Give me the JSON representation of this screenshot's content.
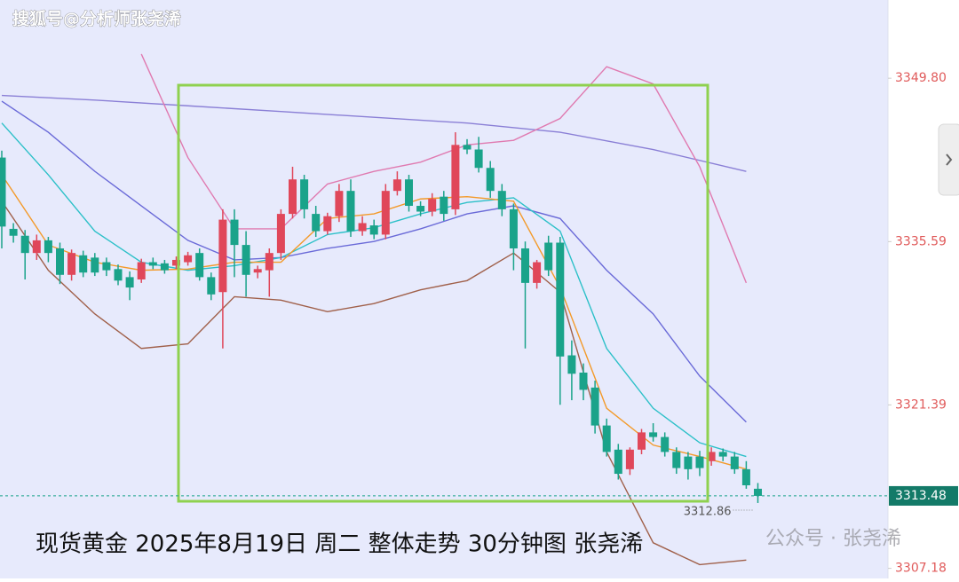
{
  "chart_data": {
    "type": "candlestick",
    "watermark": "搜狐号@分析师张尧浠",
    "caption": "现货黄金 2025年8月19日 周二 整体走势 30分钟图 张尧浠",
    "credit": "公众号 · 张尧浠",
    "up_color": "#e0475a",
    "down_color": "#1aa38a",
    "ylim": [
      3306.3,
      3356.6
    ],
    "yticks": [
      {
        "value": 3349.8,
        "label": "3349.80"
      },
      {
        "value": 3335.59,
        "label": "3335.59"
      },
      {
        "value": 3321.39,
        "label": "3321.39"
      },
      {
        "value": 3307.18,
        "label": "3307.18"
      }
    ],
    "last_price": 3313.48,
    "low_annotation": 3312.86,
    "open": [
      3342.9,
      3336.7,
      3336.1,
      3334.6,
      3335.7,
      3335.0,
      3332.7,
      3334.4,
      3334.2,
      3333.8,
      3333.2,
      3332.5,
      3332.3,
      3333.8,
      3333.7,
      3333.5,
      3333.8,
      3334.6,
      3332.5,
      3331.2,
      3337.5,
      3335.3,
      3332.9,
      3333.1,
      3334.6,
      3338.0,
      3341.0,
      3338.0,
      3336.5,
      3337.8,
      3340.0,
      3336.5,
      3337.0,
      3336.2,
      3340.0,
      3341.0,
      3338.7,
      3338.2,
      3339.5,
      3338.4,
      3344.0,
      3343.6,
      3342.0,
      3340.0,
      3338.4,
      3335.0,
      3332.0,
      3335.5,
      3335.5,
      3325.7,
      3324.2,
      3322.9,
      3319.6,
      3317.5,
      3315.8,
      3317.5,
      3319.0,
      3318.6,
      3317.3,
      3316.9,
      3316.9,
      3316.5,
      3317.3,
      3316.9,
      3315.8,
      3314.1
    ],
    "high": [
      3343.5,
      3337.2,
      3336.6,
      3336.2,
      3336.0,
      3335.5,
      3334.9,
      3334.8,
      3334.6,
      3334.2,
      3333.6,
      3333.0,
      3334.1,
      3334.2,
      3334.0,
      3334.3,
      3334.7,
      3335.0,
      3332.9,
      3338.4,
      3338.4,
      3336.5,
      3333.5,
      3335.0,
      3338.4,
      3342.1,
      3341.4,
      3338.7,
      3338.1,
      3340.6,
      3341.0,
      3337.8,
      3337.5,
      3340.6,
      3341.7,
      3341.4,
      3339.1,
      3339.8,
      3340.0,
      3345.1,
      3344.5,
      3344.7,
      3342.6,
      3340.6,
      3338.9,
      3335.6,
      3334.0,
      3336.1,
      3336.0,
      3327.0,
      3325.0,
      3323.5,
      3320.2,
      3318.0,
      3317.7,
      3319.3,
      3319.8,
      3319.0,
      3317.7,
      3317.3,
      3317.4,
      3317.7,
      3317.6,
      3317.3,
      3316.5,
      3314.6
    ],
    "low": [
      3335.0,
      3335.5,
      3332.3,
      3334.0,
      3333.8,
      3331.9,
      3332.2,
      3332.5,
      3332.6,
      3332.6,
      3331.8,
      3330.5,
      3332.0,
      3333.2,
      3332.8,
      3333.2,
      3333.5,
      3332.2,
      3330.5,
      3326.3,
      3332.5,
      3330.8,
      3332.4,
      3330.8,
      3334.0,
      3337.6,
      3337.6,
      3336.0,
      3336.2,
      3337.3,
      3336.0,
      3336.1,
      3335.8,
      3335.8,
      3339.6,
      3338.2,
      3337.8,
      3337.8,
      3337.4,
      3337.9,
      3343.2,
      3341.6,
      3339.4,
      3337.8,
      3333.1,
      3326.3,
      3331.5,
      3332.6,
      3321.4,
      3321.8,
      3321.8,
      3318.9,
      3316.9,
      3314.9,
      3315.3,
      3317.1,
      3318.2,
      3316.9,
      3315.4,
      3314.9,
      3315.2,
      3316.1,
      3316.5,
      3315.4,
      3314.1,
      3312.86
    ],
    "close": [
      3336.9,
      3336.1,
      3334.6,
      3335.7,
      3334.6,
      3332.7,
      3334.6,
      3332.9,
      3332.9,
      3333.1,
      3332.2,
      3331.6,
      3333.8,
      3333.5,
      3333.1,
      3334.0,
      3334.4,
      3332.5,
      3331.0,
      3337.5,
      3335.3,
      3332.7,
      3333.2,
      3334.6,
      3338.0,
      3341.0,
      3338.4,
      3336.5,
      3337.8,
      3340.0,
      3336.5,
      3337.2,
      3336.2,
      3340.0,
      3341.0,
      3338.7,
      3338.2,
      3339.3,
      3338.0,
      3344.0,
      3343.6,
      3342.0,
      3340.0,
      3338.4,
      3335.0,
      3332.0,
      3333.8,
      3333.1,
      3325.6,
      3324.1,
      3322.7,
      3319.6,
      3317.3,
      3315.4,
      3317.5,
      3319.0,
      3318.6,
      3317.3,
      3315.9,
      3315.8,
      3315.9,
      3317.3,
      3316.9,
      3315.8,
      3314.4,
      3313.48
    ],
    "lines": [
      {
        "color": "#8a7fd6",
        "x": [
          0,
          8,
          16,
          24,
          32,
          40,
          48,
          56,
          64
        ],
        "values": [
          3348.3,
          3347.9,
          3347.4,
          3346.9,
          3346.4,
          3345.9,
          3345.1,
          3343.6,
          3341.7
        ]
      },
      {
        "color": "#e07ab0",
        "x": [
          12,
          16,
          20,
          24,
          28,
          32,
          36,
          40,
          44,
          48,
          52,
          56,
          60,
          64
        ],
        "values": [
          3351.9,
          3342.9,
          3336.7,
          3336.7,
          3340.6,
          3341.7,
          3342.5,
          3344.0,
          3344.4,
          3346.3,
          3350.8,
          3349.3,
          3342.1,
          3332.0
        ]
      },
      {
        "color": "#a0604a",
        "x": [
          0,
          4,
          8,
          12,
          16,
          20,
          24,
          28,
          32,
          36,
          40,
          44,
          48,
          52,
          56,
          60,
          64
        ],
        "values": [
          3339.1,
          3333.1,
          3329.3,
          3326.3,
          3326.7,
          3330.8,
          3330.5,
          3329.5,
          3330.2,
          3331.4,
          3332.2,
          3334.6,
          3331.2,
          3317.3,
          3309.4,
          3307.5,
          3307.9
        ]
      },
      {
        "color": "#6a6ad8",
        "x": [
          0,
          4,
          8,
          12,
          16,
          20,
          24,
          28,
          32,
          36,
          40,
          44,
          48,
          52,
          56,
          60,
          64
        ],
        "values": [
          3347.8,
          3345.1,
          3341.7,
          3338.7,
          3335.7,
          3334.0,
          3334.2,
          3335.0,
          3335.6,
          3336.7,
          3338.0,
          3338.7,
          3337.6,
          3333.1,
          3329.3,
          3323.9,
          3319.9
        ]
      },
      {
        "color": "#2cc0c8",
        "x": [
          0,
          4,
          8,
          12,
          16,
          20,
          24,
          28,
          32,
          36,
          40,
          44,
          48,
          52,
          56,
          60,
          64
        ],
        "values": [
          3345.9,
          3341.4,
          3336.5,
          3333.8,
          3333.1,
          3333.5,
          3334.2,
          3336.2,
          3336.8,
          3338.0,
          3339.0,
          3339.4,
          3336.5,
          3326.3,
          3321.1,
          3318.1,
          3316.9
        ]
      },
      {
        "color": "#f39a2a",
        "x": [
          0,
          4,
          8,
          12,
          16,
          20,
          24,
          28,
          32,
          36,
          40,
          44,
          48,
          52,
          56,
          60,
          64
        ],
        "values": [
          3341.4,
          3335.3,
          3333.8,
          3333.1,
          3333.2,
          3333.8,
          3333.8,
          3337.6,
          3338.0,
          3339.3,
          3339.5,
          3339.1,
          3331.6,
          3321.1,
          3317.9,
          3316.9,
          3315.8
        ]
      }
    ]
  }
}
